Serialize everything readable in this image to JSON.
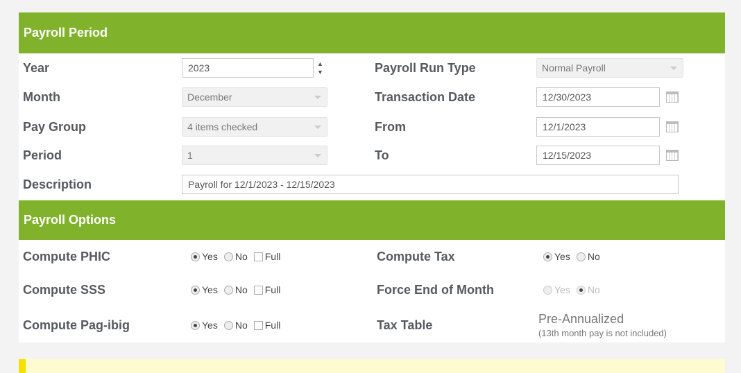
{
  "period": {
    "title": "Payroll Period",
    "year": {
      "label": "Year",
      "value": "2023"
    },
    "month": {
      "label": "Month",
      "value": "December"
    },
    "pay_group": {
      "label": "Pay Group",
      "value": "4 items checked"
    },
    "period": {
      "label": "Period",
      "value": "1"
    },
    "description": {
      "label": "Description",
      "value": "Payroll for 12/1/2023 - 12/15/2023"
    },
    "run_type": {
      "label": "Payroll Run Type",
      "value": "Normal Payroll"
    },
    "transaction_date": {
      "label": "Transaction Date",
      "value": "12/30/2023"
    },
    "from": {
      "label": "From",
      "value": "12/1/2023"
    },
    "to": {
      "label": "To",
      "value": "12/15/2023"
    }
  },
  "options": {
    "title": "Payroll Options",
    "yes": "Yes",
    "no": "No",
    "full": "Full",
    "phic": {
      "label": "Compute PHIC",
      "selected": "Yes",
      "full": false
    },
    "sss": {
      "label": "Compute SSS",
      "selected": "Yes",
      "full": false
    },
    "pagibig": {
      "label": "Compute Pag-ibig",
      "selected": "Yes",
      "full": false
    },
    "tax": {
      "label": "Compute Tax",
      "selected": "Yes"
    },
    "eom": {
      "label": "Force End of Month",
      "selected": "No",
      "disabled": true
    },
    "tax_table": {
      "label": "Tax Table",
      "value": "Pre-Annualized",
      "note": "(13th month pay is not included)"
    }
  },
  "colors": {
    "header": "#80b22c",
    "notice": "#fffbd0"
  }
}
